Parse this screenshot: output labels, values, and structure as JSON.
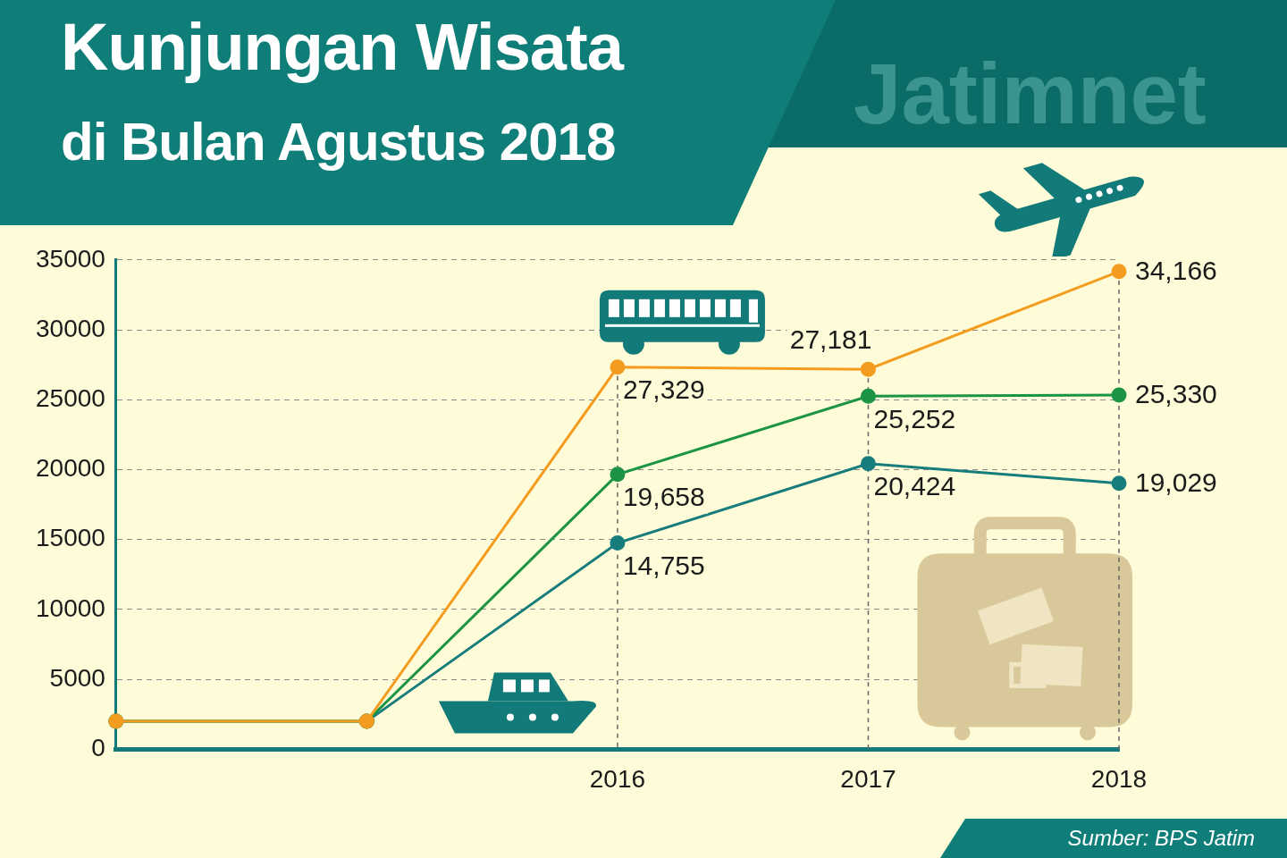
{
  "chart_data": {
    "type": "line",
    "title": "Kunjungan Wisata",
    "subtitle": "di Bulan Agustus 2018",
    "watermark": "Jatimnet",
    "source": "Sumber: BPS Jatim",
    "categories": [
      null,
      null,
      "2016",
      "2017",
      "2018"
    ],
    "series": [
      {
        "color": "#f39c1f",
        "values": [
          2000,
          2000,
          27329,
          27181,
          34166
        ],
        "value_labels": [
          null,
          null,
          "27,329",
          "27,181",
          "34,166"
        ]
      },
      {
        "color": "#1c9446",
        "values": [
          2000,
          2000,
          19658,
          25252,
          25330
        ],
        "value_labels": [
          null,
          null,
          "19,658",
          "25,252",
          "25,330"
        ]
      },
      {
        "color": "#167c7c",
        "values": [
          2000,
          2000,
          14755,
          20424,
          19029
        ],
        "value_labels": [
          null,
          null,
          "14,755",
          "20,424",
          "19,029"
        ]
      }
    ],
    "ylim": [
      0,
      35000
    ],
    "yticks": [
      0,
      5000,
      10000,
      15000,
      20000,
      25000,
      30000,
      35000
    ],
    "grid": true,
    "data_labels": true,
    "marker": "circle",
    "legend": false
  }
}
